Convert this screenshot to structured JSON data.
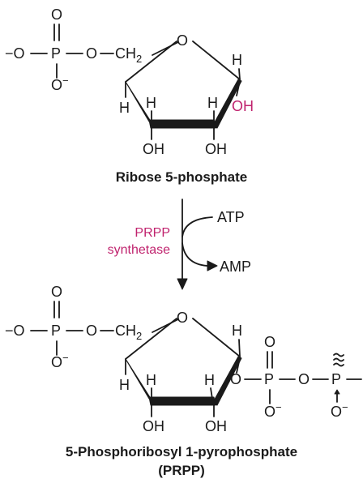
{
  "molecule_top": {
    "name": "Ribose 5-phosphate",
    "atoms": {
      "phosphate_O_top": "O",
      "phosphate_O_minus_left": "−O",
      "phosphate_P": "P",
      "phosphate_O_bridge": "O",
      "ch2": "CH",
      "ch2_sub": "2",
      "phosphate_O_minus_bottom": "O",
      "minus": "−",
      "ring_O": "O",
      "H_c1_top": "H",
      "OH_c1": "OH",
      "H_c4": "H",
      "H_c3": "H",
      "H_c2": "H",
      "OH_c3": "OH",
      "OH_c2": "OH"
    }
  },
  "reaction": {
    "enzyme_line1": "PRPP",
    "enzyme_line2": "synthetase",
    "reactant": "ATP",
    "product": "AMP"
  },
  "molecule_bottom": {
    "name_line1": "5-Phosphoribosyl 1-pyrophosphate",
    "name_line2": "(PRPP)",
    "atoms": {
      "phosphate_O_top": "O",
      "phosphate_O_minus_left": "−O",
      "phosphate_P": "P",
      "phosphate_O_bridge": "O",
      "ch2": "CH",
      "ch2_sub": "2",
      "phosphate_O_minus_bottom": "O",
      "minus": "−",
      "ring_O": "O",
      "H_c1_top": "H",
      "H_c4": "H",
      "H_c3": "H",
      "H_c2": "H",
      "OH_c3": "OH",
      "OH_c2": "OH",
      "O_link": "O",
      "P1": "P",
      "P1_O_top": "O",
      "P1_O_minus": "O",
      "O_bridge_pp": "O",
      "P2": "P",
      "P2_O_minus": "O"
    }
  },
  "colors": {
    "ink": "#1a1a1a",
    "accent": "#c0236e"
  }
}
